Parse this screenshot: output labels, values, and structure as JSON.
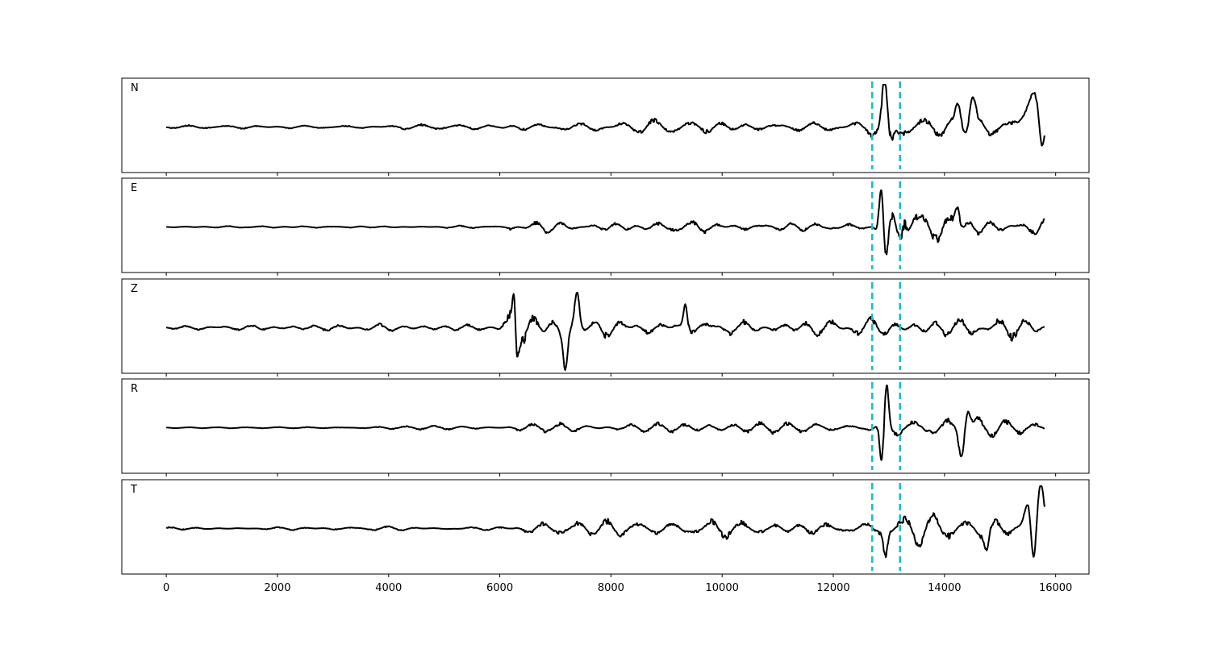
{
  "chart_data": {
    "type": "line",
    "title": "",
    "xlabel": "",
    "ylabel": "",
    "xlim": [
      -800,
      16600
    ],
    "x_ticks": [
      0,
      2000,
      4000,
      6000,
      8000,
      10000,
      12000,
      14000,
      16000
    ],
    "x_tick_labels": [
      "0",
      "2000",
      "4000",
      "6000",
      "8000",
      "10000",
      "12000",
      "14000",
      "16000"
    ],
    "sample_count": 15800,
    "trace_color": "#000000",
    "marker_color": "#17becf",
    "markers_x": [
      12700,
      13200
    ],
    "grid": false,
    "legend": "none",
    "panels": [
      {
        "label": "N",
        "envelope": [
          {
            "x": 0,
            "amp": 0.04
          },
          {
            "x": 6000,
            "amp": 0.05
          },
          {
            "x": 6200,
            "amp": 0.14
          },
          {
            "x": 12600,
            "amp": 0.12
          },
          {
            "x": 13000,
            "amp": 0.4
          },
          {
            "x": 13300,
            "amp": 0.2
          },
          {
            "x": 14600,
            "amp": 0.35
          },
          {
            "x": 15300,
            "amp": 0.25
          },
          {
            "x": 15800,
            "amp": 0.25
          }
        ],
        "bursts": [
          {
            "x": 12920,
            "amp": 0.85,
            "width": 60
          },
          {
            "x": 13040,
            "amp": -0.55,
            "width": 60
          },
          {
            "x": 14250,
            "amp": 0.5,
            "width": 70
          },
          {
            "x": 14500,
            "amp": 0.65,
            "width": 70
          },
          {
            "x": 15600,
            "amp": 0.95,
            "width": 170
          },
          {
            "x": 15750,
            "amp": -0.95,
            "width": 70
          }
        ],
        "seed": 11
      },
      {
        "label": "E",
        "envelope": [
          {
            "x": 0,
            "amp": 0.02
          },
          {
            "x": 6100,
            "amp": 0.03
          },
          {
            "x": 6200,
            "amp": 0.16
          },
          {
            "x": 12600,
            "amp": 0.1
          },
          {
            "x": 13000,
            "amp": 0.35
          },
          {
            "x": 13400,
            "amp": 0.45
          },
          {
            "x": 15000,
            "amp": 0.3
          },
          {
            "x": 15800,
            "amp": 0.22
          }
        ],
        "bursts": [
          {
            "x": 12860,
            "amp": 0.95,
            "width": 50
          },
          {
            "x": 12950,
            "amp": -0.9,
            "width": 50
          },
          {
            "x": 14230,
            "amp": 0.55,
            "width": 60
          },
          {
            "x": 13280,
            "amp": 0.45,
            "width": 55
          }
        ],
        "seed": 23
      },
      {
        "label": "Z",
        "envelope": [
          {
            "x": 0,
            "amp": 0.05
          },
          {
            "x": 5800,
            "amp": 0.08
          },
          {
            "x": 6200,
            "amp": 0.5
          },
          {
            "x": 7500,
            "amp": 0.45
          },
          {
            "x": 9500,
            "amp": 0.3
          },
          {
            "x": 12500,
            "amp": 0.22
          },
          {
            "x": 15800,
            "amp": 0.22
          }
        ],
        "bursts": [
          {
            "x": 6260,
            "amp": 0.95,
            "width": 40
          },
          {
            "x": 6300,
            "amp": -0.7,
            "width": 40
          },
          {
            "x": 7180,
            "amp": -0.75,
            "width": 55
          },
          {
            "x": 7390,
            "amp": 0.75,
            "width": 55
          },
          {
            "x": 9340,
            "amp": 0.6,
            "width": 50
          }
        ],
        "seed": 37
      },
      {
        "label": "R",
        "envelope": [
          {
            "x": 0,
            "amp": 0.02
          },
          {
            "x": 6100,
            "amp": 0.03
          },
          {
            "x": 6200,
            "amp": 0.12
          },
          {
            "x": 12600,
            "amp": 0.1
          },
          {
            "x": 13000,
            "amp": 0.35
          },
          {
            "x": 14000,
            "amp": 0.35
          },
          {
            "x": 15800,
            "amp": 0.18
          }
        ],
        "bursts": [
          {
            "x": 12870,
            "amp": -0.9,
            "width": 50
          },
          {
            "x": 12960,
            "amp": 0.95,
            "width": 50
          },
          {
            "x": 14420,
            "amp": 0.45,
            "width": 60
          },
          {
            "x": 14300,
            "amp": -0.5,
            "width": 60
          }
        ],
        "seed": 51
      },
      {
        "label": "T",
        "envelope": [
          {
            "x": 0,
            "amp": 0.04
          },
          {
            "x": 6200,
            "amp": 0.05
          },
          {
            "x": 6300,
            "amp": 0.18
          },
          {
            "x": 12600,
            "amp": 0.15
          },
          {
            "x": 13000,
            "amp": 0.3
          },
          {
            "x": 15300,
            "amp": 0.3
          },
          {
            "x": 15800,
            "amp": 0.3
          }
        ],
        "bursts": [
          {
            "x": 15500,
            "amp": 0.65,
            "width": 90
          },
          {
            "x": 15600,
            "amp": -0.95,
            "width": 60
          },
          {
            "x": 15740,
            "amp": 0.9,
            "width": 80
          },
          {
            "x": 14760,
            "amp": -0.45,
            "width": 60
          },
          {
            "x": 12940,
            "amp": -0.55,
            "width": 50
          }
        ],
        "seed": 67
      }
    ]
  }
}
